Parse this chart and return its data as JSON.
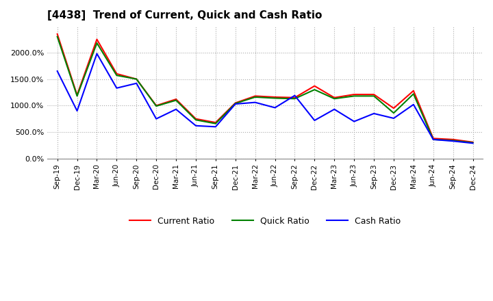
{
  "title": "[4438]  Trend of Current, Quick and Cash Ratio",
  "x_labels": [
    "Sep-19",
    "Dec-19",
    "Mar-20",
    "Jun-20",
    "Sep-20",
    "Dec-20",
    "Mar-21",
    "Jun-21",
    "Sep-21",
    "Dec-21",
    "Mar-22",
    "Jun-22",
    "Sep-22",
    "Dec-22",
    "Mar-23",
    "Jun-23",
    "Sep-23",
    "Dec-23",
    "Mar-24",
    "Jun-24",
    "Sep-24",
    "Dec-24"
  ],
  "current_ratio": [
    2350,
    1200,
    2250,
    1600,
    1500,
    1000,
    1120,
    750,
    680,
    1050,
    1180,
    1160,
    1150,
    1370,
    1150,
    1210,
    1210,
    950,
    1280,
    380,
    360,
    310
  ],
  "quick_ratio": [
    2300,
    1180,
    2180,
    1570,
    1500,
    990,
    1100,
    730,
    660,
    1040,
    1160,
    1140,
    1130,
    1300,
    1130,
    1180,
    1180,
    860,
    1220,
    360,
    340,
    300
  ],
  "cash_ratio": [
    1650,
    900,
    1980,
    1330,
    1420,
    750,
    930,
    620,
    600,
    1030,
    1060,
    960,
    1190,
    720,
    930,
    700,
    850,
    760,
    1020,
    360,
    330,
    290
  ],
  "current_color": "#ff0000",
  "quick_color": "#008000",
  "cash_color": "#0000ff",
  "ylim": [
    0,
    2500
  ],
  "yticks": [
    0,
    500,
    1000,
    1500,
    2000
  ],
  "background_color": "#ffffff",
  "grid_color": "#aaaaaa"
}
